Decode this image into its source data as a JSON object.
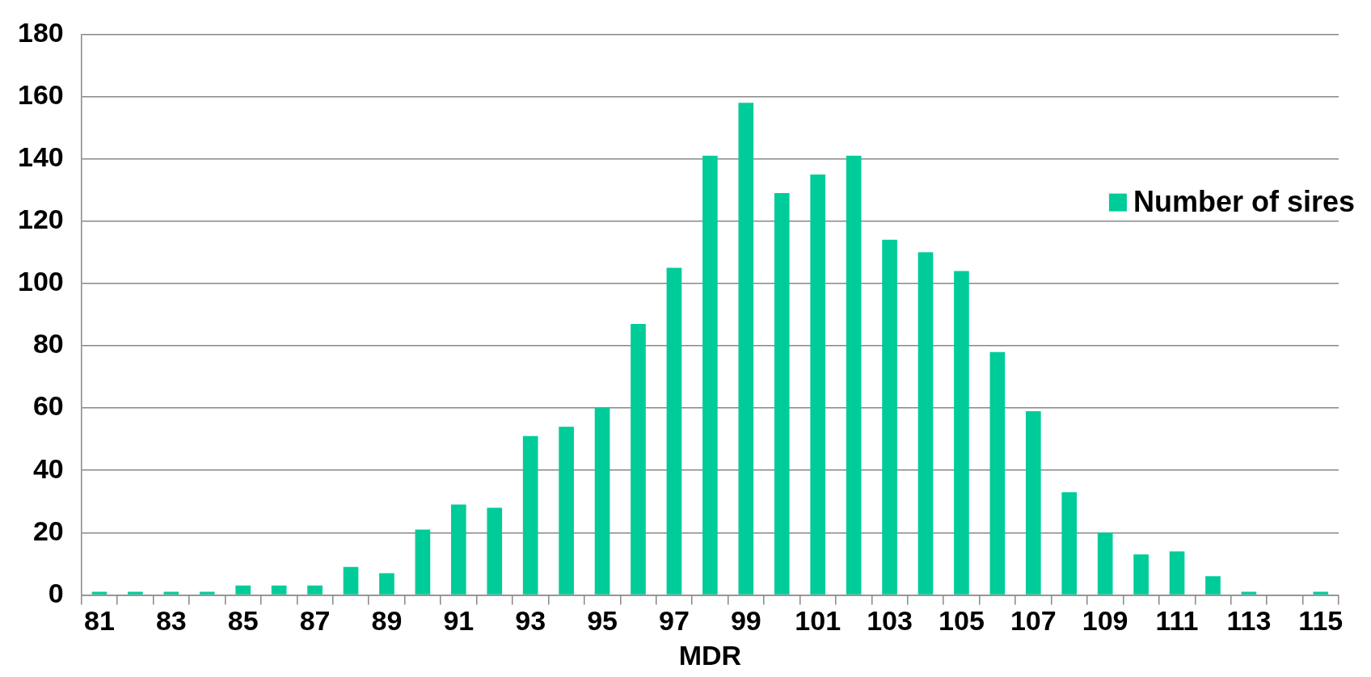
{
  "chart_data": {
    "type": "bar",
    "xlabel": "MDR",
    "categories": [
      "81",
      null,
      "83",
      null,
      "85",
      null,
      "87",
      null,
      "89",
      null,
      "91",
      null,
      "93",
      null,
      "95",
      null,
      "97",
      null,
      "99",
      null,
      "101",
      null,
      "103",
      null,
      "105",
      null,
      "107",
      null,
      "109",
      null,
      "111",
      null,
      "113",
      null,
      "115"
    ],
    "series": [
      {
        "name": "Number of sires",
        "color": "#00cc99",
        "values": [
          1,
          1,
          1,
          1,
          3,
          3,
          3,
          9,
          7,
          21,
          29,
          28,
          51,
          54,
          60,
          87,
          105,
          141,
          158,
          129,
          135,
          141,
          114,
          110,
          104,
          78,
          59,
          33,
          20,
          13,
          14,
          6,
          1,
          0,
          1
        ]
      }
    ],
    "ylim": [
      0,
      180
    ],
    "yticks": [
      0,
      20,
      40,
      60,
      80,
      100,
      120,
      140,
      160,
      180
    ],
    "grid": "y",
    "legend": "right"
  }
}
